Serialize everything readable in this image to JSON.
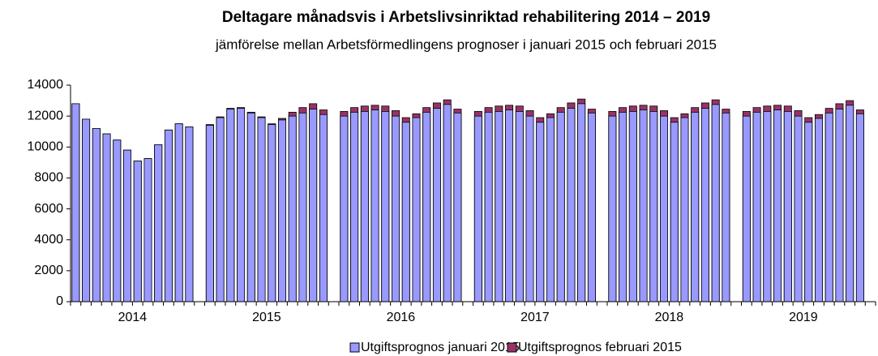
{
  "chart_data": {
    "type": "bar",
    "overlap": true,
    "title": "Deltagare månadsvis i Arbetslivsinriktad rehabilitering 2014 – 2019",
    "subtitle": "jämförelse mellan Arbetsförmedlingens prognoser i januari 2015 och februari 2015",
    "groups": [
      "2014",
      "2015",
      "2016",
      "2017",
      "2018",
      "2019"
    ],
    "ylim": [
      0,
      14000
    ],
    "yticks": [
      0,
      2000,
      4000,
      6000,
      8000,
      10000,
      12000,
      14000
    ],
    "grid": false,
    "legend": "bottom",
    "series": [
      {
        "name": "Utgiftsprognos februari 2015",
        "color": "#993366",
        "values": [
          12800,
          11800,
          11200,
          10850,
          10450,
          9800,
          9100,
          9250,
          10150,
          11100,
          11500,
          11300,
          11450,
          11950,
          12500,
          12550,
          12250,
          11950,
          11500,
          11850,
          12250,
          12550,
          12800,
          12400,
          12300,
          12550,
          12650,
          12700,
          12650,
          12350,
          11900,
          12150,
          12550,
          12850,
          13050,
          12450,
          12300,
          12550,
          12650,
          12700,
          12650,
          12350,
          11900,
          12150,
          12550,
          12850,
          13100,
          12450,
          12300,
          12550,
          12650,
          12700,
          12650,
          12350,
          11900,
          12150,
          12550,
          12850,
          13050,
          12450,
          12300,
          12550,
          12650,
          12700,
          12650,
          12350,
          11900,
          12100,
          12500,
          12800,
          13000,
          12400
        ]
      },
      {
        "name": "Utgiftsprognos januari 2015",
        "color": "#9999ff",
        "values": [
          12800,
          11800,
          11200,
          10850,
          10450,
          9800,
          9100,
          9250,
          10150,
          11100,
          11500,
          11300,
          11400,
          11900,
          12450,
          12500,
          12200,
          11900,
          11450,
          11750,
          12000,
          12200,
          12450,
          12100,
          12000,
          12250,
          12300,
          12400,
          12300,
          12000,
          11600,
          11900,
          12250,
          12500,
          12750,
          12200,
          12000,
          12250,
          12300,
          12400,
          12300,
          12000,
          11600,
          11900,
          12250,
          12500,
          12800,
          12200,
          12000,
          12250,
          12300,
          12400,
          12300,
          12000,
          11600,
          11900,
          12250,
          12500,
          12750,
          12200,
          12000,
          12250,
          12300,
          12400,
          12300,
          12000,
          11600,
          11850,
          12200,
          12450,
          12700,
          12150
        ]
      }
    ]
  }
}
